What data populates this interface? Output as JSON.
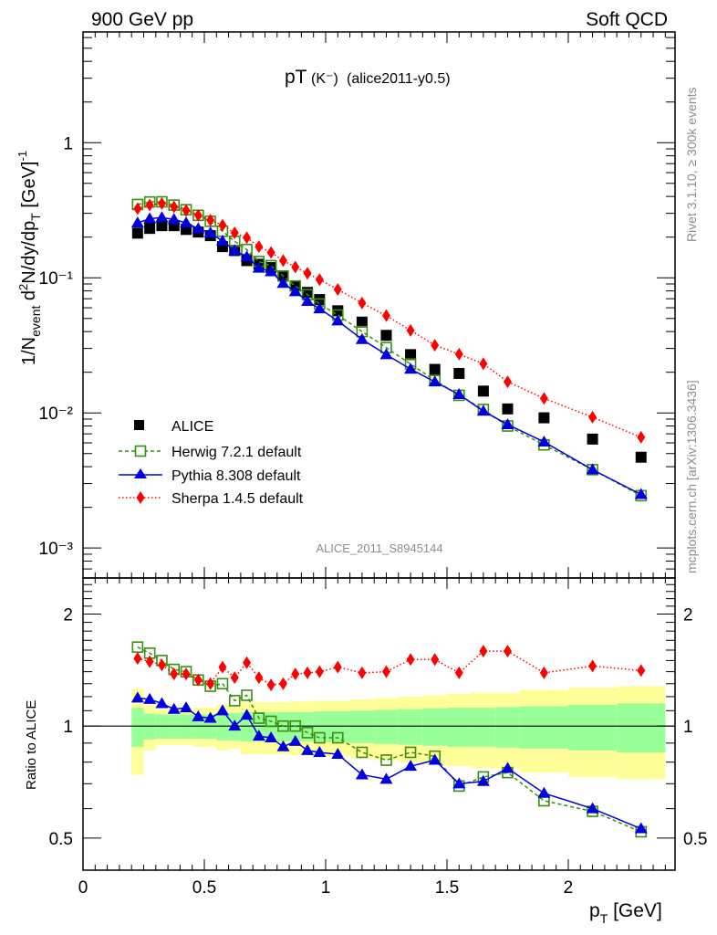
{
  "header": {
    "left_label": "900 GeV pp",
    "right_label": "Soft QCD",
    "plot_title_main": "pT",
    "plot_title_particle": "(K⁻)",
    "plot_title_tag": "(alice2011-y0.5)",
    "analysis_id": "ALICE_2011_S8945144",
    "side_label_top": "Rivet 3.1.10, ≥ 300k events",
    "side_label_bottom": "mcplots.cern.ch [arXiv:1306.3436]"
  },
  "chart_data": [
    {
      "type": "scatter",
      "panel": "main",
      "title": "pT(K-) (alice2011-y0.5)",
      "xlabel": "p_T [GeV]",
      "ylabel": "1/N_event d²N/dy/dp_T [GeV]⁻¹",
      "yscale": "log",
      "xlim": [
        0,
        2.44
      ],
      "ylim": [
        0.0006,
        6.6
      ],
      "y_ticks": [
        {
          "value": 1,
          "label": "1"
        },
        {
          "value": 0.1,
          "label": "10⁻¹"
        },
        {
          "value": 0.01,
          "label": "10⁻²"
        },
        {
          "value": 0.001,
          "label": "10⁻³"
        }
      ],
      "legend_position": "lower-left",
      "x": [
        0.225,
        0.275,
        0.325,
        0.375,
        0.425,
        0.475,
        0.525,
        0.575,
        0.625,
        0.675,
        0.725,
        0.775,
        0.825,
        0.875,
        0.925,
        0.975,
        1.05,
        1.15,
        1.25,
        1.35,
        1.45,
        1.55,
        1.65,
        1.75,
        1.9,
        2.1,
        2.3
      ],
      "series": [
        {
          "name": "ALICE",
          "color": "#000000",
          "marker": "square",
          "line": "none",
          "values": [
            0.214,
            0.232,
            0.243,
            0.243,
            0.228,
            0.218,
            0.205,
            0.17,
            0.159,
            0.134,
            0.126,
            0.119,
            0.103,
            0.087,
            0.078,
            0.069,
            0.057,
            0.047,
            0.0375,
            0.027,
            0.021,
            0.0196,
            0.0145,
            0.0107,
            0.0092,
            0.0064,
            0.0047
          ]
        },
        {
          "name": "Herwig 7.2.1 default",
          "color": "#3a8f0e",
          "marker": "open-square",
          "line": "dashed",
          "values": [
            0.349,
            0.364,
            0.365,
            0.345,
            0.319,
            0.29,
            0.262,
            0.221,
            0.186,
            0.162,
            0.132,
            0.123,
            0.103,
            0.087,
            0.075,
            0.064,
            0.053,
            0.04,
            0.0304,
            0.023,
            0.0174,
            0.0135,
            0.0106,
            0.008,
            0.0058,
            0.0038,
            0.00244
          ]
        },
        {
          "name": "Pythia 8.308 default",
          "color": "#0000e0",
          "marker": "triangle",
          "line": "solid",
          "values": [
            0.255,
            0.274,
            0.279,
            0.27,
            0.255,
            0.231,
            0.215,
            0.187,
            0.159,
            0.143,
            0.118,
            0.111,
            0.091,
            0.079,
            0.067,
            0.059,
            0.048,
            0.035,
            0.027,
            0.0211,
            0.017,
            0.0137,
            0.0103,
            0.0082,
            0.0061,
            0.0038,
            0.00249
          ]
        },
        {
          "name": "Sherpa 1.4.5 default",
          "color": "#ff0000",
          "marker": "diamond",
          "line": "dotted",
          "values": [
            0.325,
            0.346,
            0.355,
            0.335,
            0.315,
            0.29,
            0.267,
            0.245,
            0.215,
            0.198,
            0.17,
            0.154,
            0.134,
            0.12,
            0.108,
            0.097,
            0.082,
            0.065,
            0.0525,
            0.0408,
            0.0317,
            0.0272,
            0.0231,
            0.017,
            0.0128,
            0.0093,
            0.0066
          ]
        }
      ]
    },
    {
      "type": "scatter",
      "panel": "ratio",
      "ylabel": "Ratio to ALICE",
      "xlabel": "p_T [GeV]",
      "yscale": "log",
      "xlim": [
        0,
        2.44
      ],
      "ylim": [
        0.41,
        2.5
      ],
      "x_ticks": [
        {
          "value": 0,
          "label": "0"
        },
        {
          "value": 0.5,
          "label": "0.5"
        },
        {
          "value": 1,
          "label": "1"
        },
        {
          "value": 1.5,
          "label": "1.5"
        },
        {
          "value": 2,
          "label": "2"
        }
      ],
      "y_ticks": [
        {
          "value": 0.5,
          "label": "0.5"
        },
        {
          "value": 1,
          "label": "1"
        },
        {
          "value": 2,
          "label": "2"
        }
      ],
      "reference_line": 1,
      "bin_edges": [
        0.2,
        0.25,
        0.3,
        0.35,
        0.4,
        0.45,
        0.5,
        0.55,
        0.6,
        0.65,
        0.7,
        0.75,
        0.8,
        0.85,
        0.9,
        0.95,
        1.0,
        1.1,
        1.2,
        1.3,
        1.4,
        1.5,
        1.6,
        1.7,
        1.8,
        2.0,
        2.2,
        2.4
      ],
      "uncertainty_bands": {
        "stat_color": "#99ff99",
        "total_color": "#ffff99",
        "stat_half_width": [
          0.12,
          0.08,
          0.075,
          0.075,
          0.075,
          0.075,
          0.075,
          0.085,
          0.085,
          0.09,
          0.09,
          0.09,
          0.09,
          0.09,
          0.09,
          0.095,
          0.095,
          0.1,
          0.105,
          0.11,
          0.115,
          0.12,
          0.12,
          0.125,
          0.13,
          0.14,
          0.15
        ],
        "total_half_width": [
          0.26,
          0.14,
          0.11,
          0.11,
          0.11,
          0.12,
          0.12,
          0.14,
          0.13,
          0.16,
          0.16,
          0.16,
          0.16,
          0.165,
          0.165,
          0.17,
          0.17,
          0.18,
          0.19,
          0.2,
          0.21,
          0.22,
          0.23,
          0.23,
          0.25,
          0.27,
          0.28
        ]
      },
      "x": [
        0.225,
        0.275,
        0.325,
        0.375,
        0.425,
        0.475,
        0.525,
        0.575,
        0.625,
        0.675,
        0.725,
        0.775,
        0.825,
        0.875,
        0.925,
        0.975,
        1.05,
        1.15,
        1.25,
        1.35,
        1.45,
        1.55,
        1.65,
        1.75,
        1.9,
        2.1,
        2.3
      ],
      "series": [
        {
          "name": "Herwig 7.2.1 default",
          "color": "#3a8f0e",
          "marker": "open-square",
          "line": "dashed",
          "values": [
            1.63,
            1.57,
            1.5,
            1.42,
            1.4,
            1.33,
            1.28,
            1.3,
            1.17,
            1.21,
            1.05,
            1.03,
            1.0,
            1.0,
            0.96,
            0.93,
            0.93,
            0.85,
            0.81,
            0.85,
            0.83,
            0.69,
            0.73,
            0.75,
            0.63,
            0.59,
            0.52
          ]
        },
        {
          "name": "Pythia 8.308 default",
          "color": "#0000e0",
          "marker": "triangle",
          "line": "solid",
          "values": [
            1.19,
            1.18,
            1.15,
            1.11,
            1.12,
            1.06,
            1.05,
            1.1,
            1.0,
            1.07,
            0.94,
            0.93,
            0.88,
            0.91,
            0.86,
            0.85,
            0.84,
            0.74,
            0.72,
            0.78,
            0.81,
            0.7,
            0.71,
            0.77,
            0.66,
            0.6,
            0.53
          ]
        },
        {
          "name": "Sherpa 1.4.5 default",
          "color": "#ff0000",
          "marker": "diamond",
          "line": "dotted",
          "values": [
            1.52,
            1.49,
            1.46,
            1.38,
            1.38,
            1.33,
            1.3,
            1.44,
            1.35,
            1.48,
            1.35,
            1.29,
            1.3,
            1.38,
            1.39,
            1.4,
            1.44,
            1.39,
            1.4,
            1.51,
            1.51,
            1.39,
            1.59,
            1.59,
            1.39,
            1.45,
            1.41
          ]
        }
      ]
    }
  ]
}
